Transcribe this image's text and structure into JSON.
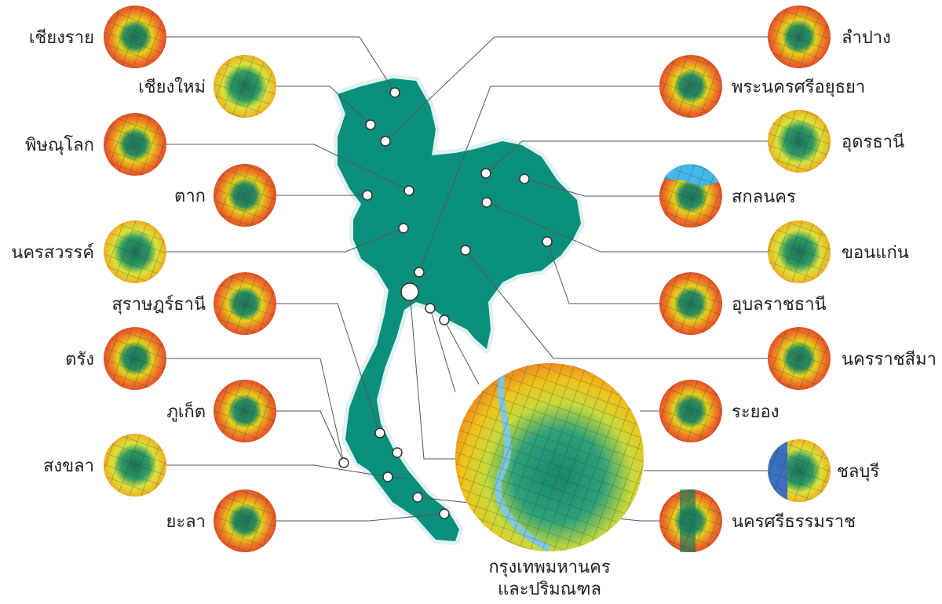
{
  "colors": {
    "map_fill": "#0a8f7c",
    "map_halo": "#d8f0ef",
    "leader_line": "#555555",
    "marker_fill": "#ffffff",
    "marker_stroke": "#333333",
    "heat_low": "#1f7a5c",
    "heat_mid": "#f2d21b",
    "heat_high": "#e8522a",
    "water": "#3fa9d6"
  },
  "cities": [
    {
      "id": "chiang-rai",
      "label": "เชียงราย",
      "side": "left"
    },
    {
      "id": "chiang-mai",
      "label": "เชียงใหม่",
      "side": "left"
    },
    {
      "id": "phitsanulok",
      "label": "พิษณุโลก",
      "side": "left"
    },
    {
      "id": "tak",
      "label": "ตาก",
      "side": "left"
    },
    {
      "id": "nakhon-sawan",
      "label": "นครสวรรค์",
      "side": "left"
    },
    {
      "id": "surat-thani",
      "label": "สุราษฎร์ธานี",
      "side": "left"
    },
    {
      "id": "trang",
      "label": "ตรัง",
      "side": "left"
    },
    {
      "id": "phuket",
      "label": "ภูเก็ต",
      "side": "left"
    },
    {
      "id": "songkhla",
      "label": "สงขลา",
      "side": "left"
    },
    {
      "id": "yala",
      "label": "ยะลา",
      "side": "left"
    },
    {
      "id": "lampang",
      "label": "ลำปาง",
      "side": "right"
    },
    {
      "id": "ayutthaya",
      "label": "พระนครศรีอยุธยา",
      "side": "right"
    },
    {
      "id": "udon-thani",
      "label": "อุดรธานี",
      "side": "right"
    },
    {
      "id": "sakon-nakhon",
      "label": "สกลนคร",
      "side": "right"
    },
    {
      "id": "khon-kaen",
      "label": "ขอนแก่น",
      "side": "right"
    },
    {
      "id": "ubon",
      "label": "อุบลราชธานี",
      "side": "right"
    },
    {
      "id": "nakhon-ratchasima",
      "label": "นครราชสีมา",
      "side": "right"
    },
    {
      "id": "rayong",
      "label": "ระยอง",
      "side": "right"
    },
    {
      "id": "chonburi",
      "label": "ชลบุรี",
      "side": "right"
    },
    {
      "id": "nakhon-si-thammarat",
      "label": "นครศรีธรรมราช",
      "side": "right"
    }
  ],
  "bangkok": {
    "label_line1": "กรุงเทพมหานคร",
    "label_line2": "และปริมณฑล"
  }
}
